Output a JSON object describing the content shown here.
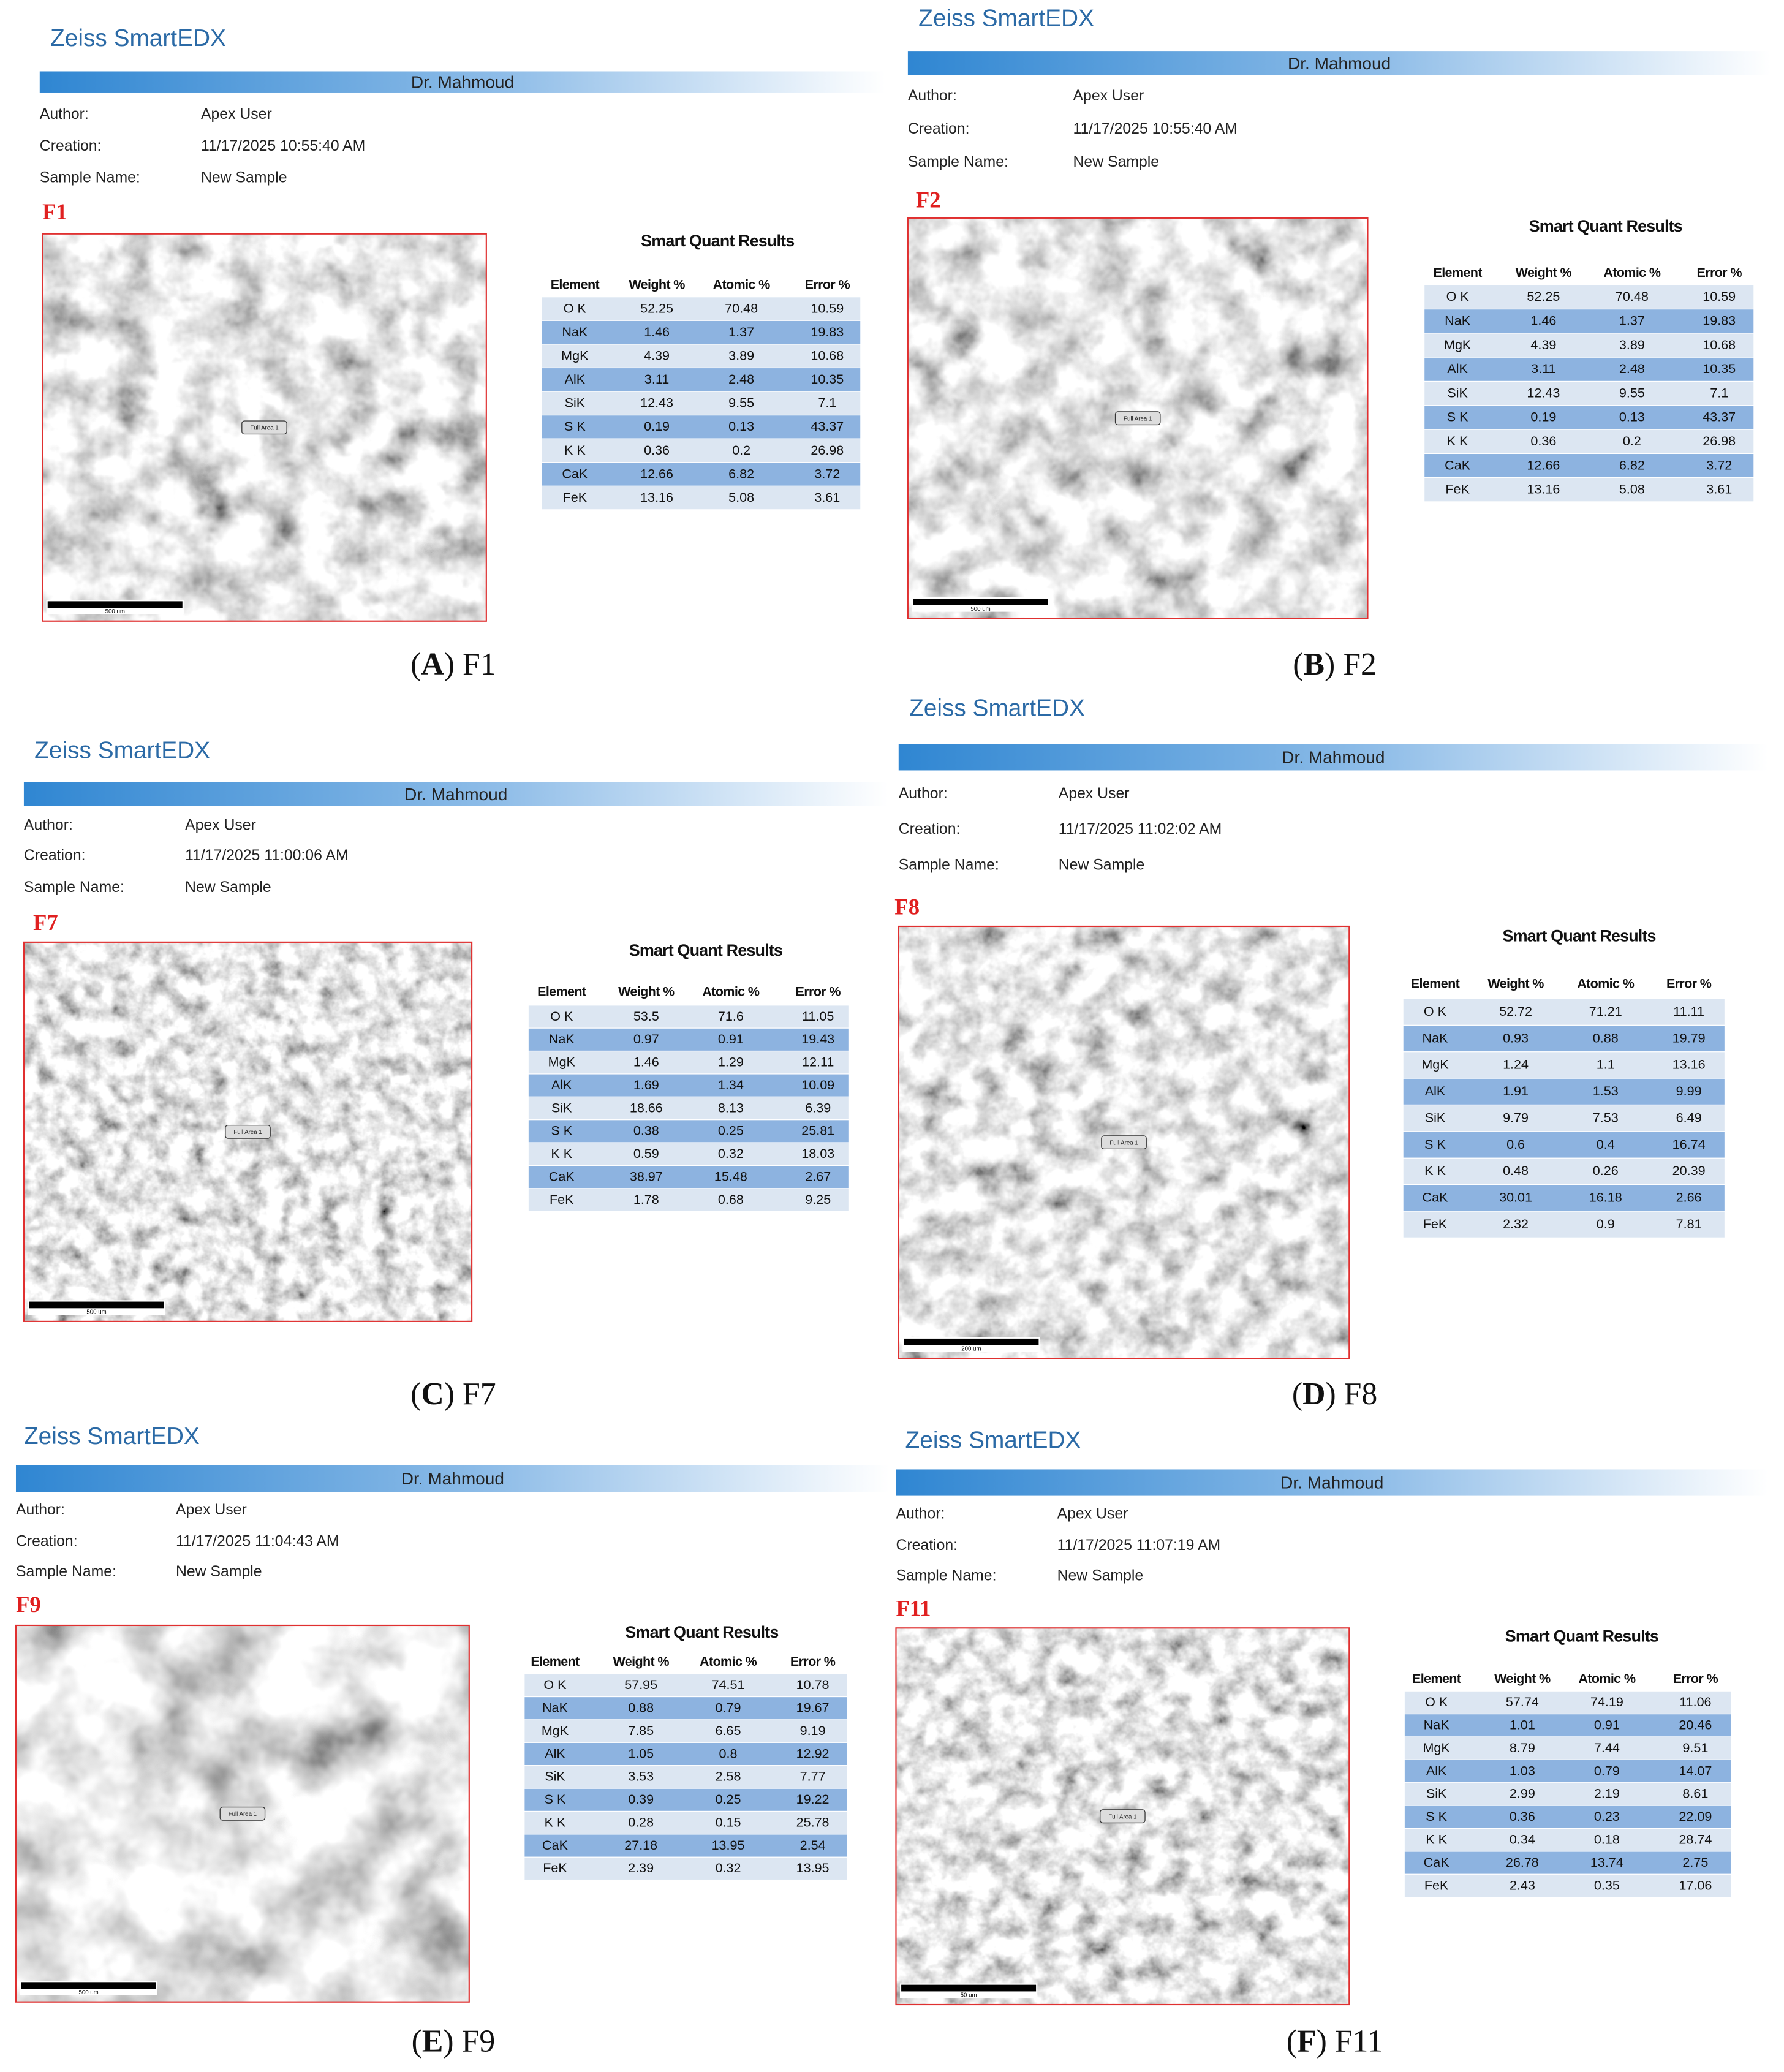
{
  "panels": [
    {
      "title": "Zeiss SmartEDX",
      "banner": "Dr. Mahmoud",
      "fields": [
        {
          "label": "Author:",
          "value": "Apex User"
        },
        {
          "label": "Creation:",
          "value": "11/17/2025 10:55:40 AM"
        },
        {
          "label": "Sample Name:",
          "value": "New Sample"
        }
      ],
      "figure_label": "F1",
      "image": {
        "area_label": "Full Area 1",
        "scale_bar": "500 um"
      },
      "table": {
        "title": "Smart Quant Results",
        "columns": [
          "Element",
          "Weight %",
          "Atomic %",
          "Error %"
        ],
        "rows": [
          [
            "O K",
            52.25,
            70.48,
            10.59
          ],
          [
            "NaK",
            1.46,
            1.37,
            19.83
          ],
          [
            "MgK",
            4.39,
            3.89,
            10.68
          ],
          [
            "AlK",
            3.11,
            2.48,
            10.35
          ],
          [
            "SiK",
            12.43,
            9.55,
            7.1
          ],
          [
            "S K",
            0.19,
            0.13,
            43.37
          ],
          [
            "K K",
            0.36,
            0.2,
            26.98
          ],
          [
            "CaK",
            12.66,
            6.82,
            3.72
          ],
          [
            "FeK",
            13.16,
            5.08,
            3.61
          ]
        ]
      },
      "caption": [
        "(",
        "A",
        ")",
        "F1"
      ]
    },
    {
      "title": "Zeiss SmartEDX",
      "banner": "Dr. Mahmoud",
      "fields": [
        {
          "label": "Author:",
          "value": "Apex User"
        },
        {
          "label": "Creation:",
          "value": "11/17/2025 10:55:40 AM"
        },
        {
          "label": "Sample Name:",
          "value": "New Sample"
        }
      ],
      "figure_label": "F2",
      "image": {
        "area_label": "Full Area 1",
        "scale_bar": "500 um"
      },
      "table": {
        "title": "Smart Quant Results",
        "columns": [
          "Element",
          "Weight %",
          "Atomic %",
          "Error %"
        ],
        "rows": [
          [
            "O K",
            52.25,
            70.48,
            10.59
          ],
          [
            "NaK",
            1.46,
            1.37,
            19.83
          ],
          [
            "MgK",
            4.39,
            3.89,
            10.68
          ],
          [
            "AlK",
            3.11,
            2.48,
            10.35
          ],
          [
            "SiK",
            12.43,
            9.55,
            7.1
          ],
          [
            "S K",
            0.19,
            0.13,
            43.37
          ],
          [
            "K K",
            0.36,
            0.2,
            26.98
          ],
          [
            "CaK",
            12.66,
            6.82,
            3.72
          ],
          [
            "FeK",
            13.16,
            5.08,
            3.61
          ]
        ]
      },
      "caption": [
        "(",
        "B",
        ")",
        "F2"
      ]
    },
    {
      "title": "Zeiss SmartEDX",
      "banner": "Dr. Mahmoud",
      "fields": [
        {
          "label": "Author:",
          "value": "Apex User"
        },
        {
          "label": "Creation:",
          "value": "11/17/2025 11:00:06 AM"
        },
        {
          "label": "Sample Name:",
          "value": "New Sample"
        }
      ],
      "figure_label": "F7",
      "image": {
        "area_label": "Full Area 1",
        "scale_bar": "500 um"
      },
      "table": {
        "title": "Smart Quant Results",
        "columns": [
          "Element",
          "Weight %",
          "Atomic %",
          "Error %"
        ],
        "rows": [
          [
            "O K",
            53.5,
            71.6,
            11.05
          ],
          [
            "NaK",
            0.97,
            0.91,
            19.43
          ],
          [
            "MgK",
            1.46,
            1.29,
            12.11
          ],
          [
            "AlK",
            1.69,
            1.34,
            10.09
          ],
          [
            "SiK",
            18.66,
            8.13,
            6.39
          ],
          [
            "S K",
            0.38,
            0.25,
            25.81
          ],
          [
            "K K",
            0.59,
            0.32,
            18.03
          ],
          [
            "CaK",
            38.97,
            15.48,
            2.67
          ],
          [
            "FeK",
            1.78,
            0.68,
            9.25
          ]
        ]
      },
      "caption": [
        "(",
        "C",
        ")",
        "F7"
      ]
    },
    {
      "title": "Zeiss SmartEDX",
      "banner": "Dr. Mahmoud",
      "fields": [
        {
          "label": "Author:",
          "value": "Apex User"
        },
        {
          "label": "Creation:",
          "value": "11/17/2025 11:02:02 AM"
        },
        {
          "label": "Sample Name:",
          "value": "New Sample"
        }
      ],
      "figure_label": "F8",
      "image": {
        "area_label": "Full Area 1",
        "scale_bar": "200 um"
      },
      "table": {
        "title": "Smart Quant Results",
        "columns": [
          "Element",
          "Weight %",
          "Atomic %",
          "Error %"
        ],
        "rows": [
          [
            "O K",
            52.72,
            71.21,
            11.11
          ],
          [
            "NaK",
            0.93,
            0.88,
            19.79
          ],
          [
            "MgK",
            1.24,
            1.1,
            13.16
          ],
          [
            "AlK",
            1.91,
            1.53,
            9.99
          ],
          [
            "SiK",
            9.79,
            7.53,
            6.49
          ],
          [
            "S K",
            0.6,
            0.4,
            16.74
          ],
          [
            "K K",
            0.48,
            0.26,
            20.39
          ],
          [
            "CaK",
            30.01,
            16.18,
            2.66
          ],
          [
            "FeK",
            2.32,
            0.9,
            7.81
          ]
        ]
      },
      "caption": [
        "(",
        "D",
        ")",
        "F8"
      ]
    },
    {
      "title": "Zeiss SmartEDX",
      "banner": "Dr. Mahmoud",
      "fields": [
        {
          "label": "Author:",
          "value": "Apex User"
        },
        {
          "label": "Creation:",
          "value": "11/17/2025 11:04:43 AM"
        },
        {
          "label": "Sample Name:",
          "value": "New Sample"
        }
      ],
      "figure_label": "F9",
      "image": {
        "area_label": "Full Area 1",
        "scale_bar": "500 um"
      },
      "table": {
        "title": "Smart Quant Results",
        "columns": [
          "Element",
          "Weight %",
          "Atomic %",
          "Error %"
        ],
        "rows": [
          [
            "O K",
            57.95,
            74.51,
            10.78
          ],
          [
            "NaK",
            0.88,
            0.79,
            19.67
          ],
          [
            "MgK",
            7.85,
            6.65,
            9.19
          ],
          [
            "AlK",
            1.05,
            0.8,
            12.92
          ],
          [
            "SiK",
            3.53,
            2.58,
            7.77
          ],
          [
            "S K",
            0.39,
            0.25,
            19.22
          ],
          [
            "K K",
            0.28,
            0.15,
            25.78
          ],
          [
            "CaK",
            27.18,
            13.95,
            2.54
          ],
          [
            "FeK",
            2.39,
            0.32,
            13.95
          ]
        ]
      },
      "caption": [
        "(",
        "E",
        ")",
        "F9"
      ]
    },
    {
      "title": "Zeiss SmartEDX",
      "banner": "Dr. Mahmoud",
      "fields": [
        {
          "label": "Author:",
          "value": "Apex User"
        },
        {
          "label": "Creation:",
          "value": "11/17/2025 11:07:19 AM"
        },
        {
          "label": "Sample Name:",
          "value": "New Sample"
        }
      ],
      "figure_label": "F11",
      "image": {
        "area_label": "Full Area 1",
        "scale_bar": "50 um"
      },
      "table": {
        "title": "Smart Quant Results",
        "columns": [
          "Element",
          "Weight %",
          "Atomic %",
          "Error %"
        ],
        "rows": [
          [
            "O K",
            57.74,
            74.19,
            11.06
          ],
          [
            "NaK",
            1.01,
            0.91,
            20.46
          ],
          [
            "MgK",
            8.79,
            7.44,
            9.51
          ],
          [
            "AlK",
            1.03,
            0.79,
            14.07
          ],
          [
            "SiK",
            2.99,
            2.19,
            8.61
          ],
          [
            "S K",
            0.36,
            0.23,
            22.09
          ],
          [
            "K K",
            0.34,
            0.18,
            28.74
          ],
          [
            "CaK",
            26.78,
            13.74,
            2.75
          ],
          [
            "FeK",
            2.43,
            0.35,
            17.06
          ]
        ]
      },
      "caption": [
        "(",
        "F",
        ")",
        "F11"
      ]
    }
  ]
}
